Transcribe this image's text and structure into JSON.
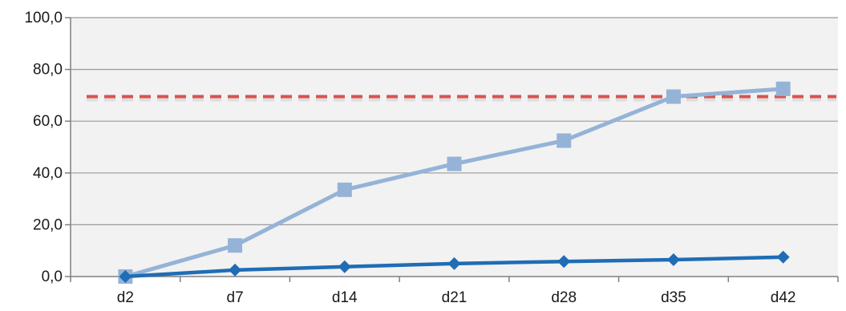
{
  "chart_data": {
    "type": "line",
    "categories": [
      "d2",
      "d7",
      "d14",
      "d21",
      "d28",
      "d35",
      "d42"
    ],
    "y_tick_labels": [
      "0,0",
      "20,0",
      "40,0",
      "60,0",
      "80,0",
      "100,0"
    ],
    "y_ticks": [
      0,
      20,
      40,
      60,
      80,
      100
    ],
    "ylim": [
      0,
      100
    ],
    "grid": true,
    "legend": "none",
    "series": [
      {
        "color": "#95b3d7",
        "marker": "square",
        "values": [
          0.0,
          12.0,
          33.5,
          43.5,
          52.5,
          69.5,
          72.5
        ]
      },
      {
        "color": "#1f6db5",
        "marker": "diamond",
        "values": [
          0.0,
          2.5,
          3.8,
          5.0,
          5.8,
          6.5,
          7.5
        ]
      }
    ],
    "reference_line": {
      "value": 69.5,
      "style": "dashed",
      "color": "#d9534f"
    },
    "colors": {
      "plot_background": "#f2f2f2",
      "gridline": "#9a9a9a",
      "axis": "#808080"
    }
  }
}
